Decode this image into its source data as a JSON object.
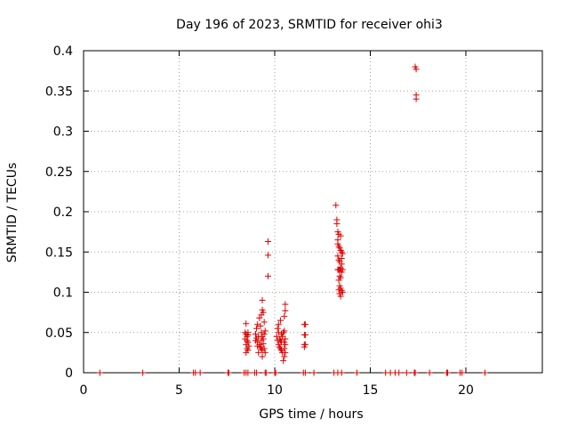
{
  "chart_data": {
    "type": "scatter",
    "title": "Day 196 of 2023, SRMTID for receiver ohi3",
    "xlabel": "GPS time / hours",
    "ylabel": "SRMTID / TECUs",
    "xlim": [
      0,
      24
    ],
    "ylim": [
      0,
      0.4
    ],
    "grid": true,
    "marker": "+",
    "color": "#e00000",
    "x_ticks": [
      0,
      5,
      10,
      15,
      20
    ],
    "y_ticks": [
      0,
      0.05,
      0.1,
      0.15,
      0.2,
      0.25,
      0.3,
      0.35,
      0.4
    ],
    "x_tick_labels": [
      "0",
      "5",
      "10",
      "15",
      "20"
    ],
    "y_tick_labels": [
      "0",
      "0.05",
      "0.1",
      "0.15",
      "0.2",
      "0.25",
      "0.3",
      "0.35",
      "0.4"
    ],
    "series": [
      {
        "name": "SRMTID",
        "points": [
          [
            0.85,
            0
          ],
          [
            3.1,
            0
          ],
          [
            5.75,
            0
          ],
          [
            5.85,
            0
          ],
          [
            6.1,
            0
          ],
          [
            7.55,
            0
          ],
          [
            7.6,
            0
          ],
          [
            8.4,
            0
          ],
          [
            8.5,
            0
          ],
          [
            8.6,
            0
          ],
          [
            8.95,
            0
          ],
          [
            9.05,
            0
          ],
          [
            9.5,
            0
          ],
          [
            9.55,
            0
          ],
          [
            10.0,
            0
          ],
          [
            10.05,
            0
          ],
          [
            11.5,
            0
          ],
          [
            11.6,
            0
          ],
          [
            12.05,
            0
          ],
          [
            13.1,
            0
          ],
          [
            13.3,
            0
          ],
          [
            13.5,
            0
          ],
          [
            14.3,
            0
          ],
          [
            15.8,
            0
          ],
          [
            16.05,
            0
          ],
          [
            16.3,
            0
          ],
          [
            16.5,
            0
          ],
          [
            16.9,
            0
          ],
          [
            17.3,
            0
          ],
          [
            17.35,
            0
          ],
          [
            18.1,
            0
          ],
          [
            19.0,
            0
          ],
          [
            19.05,
            0
          ],
          [
            19.7,
            0
          ],
          [
            19.8,
            0
          ],
          [
            21.0,
            0
          ],
          [
            8.5,
            0.061
          ],
          [
            8.45,
            0.05
          ],
          [
            8.5,
            0.048
          ],
          [
            8.55,
            0.045
          ],
          [
            8.6,
            0.05
          ],
          [
            8.45,
            0.042
          ],
          [
            8.55,
            0.04
          ],
          [
            8.6,
            0.038
          ],
          [
            8.5,
            0.035
          ],
          [
            8.55,
            0.03
          ],
          [
            8.6,
            0.028
          ],
          [
            8.5,
            0.025
          ],
          [
            8.65,
            0.033
          ],
          [
            8.6,
            0.047
          ],
          [
            9.0,
            0.048
          ],
          [
            9.05,
            0.055
          ],
          [
            9.1,
            0.06
          ],
          [
            9.15,
            0.045
          ],
          [
            9.0,
            0.04
          ],
          [
            9.1,
            0.038
          ],
          [
            9.2,
            0.035
          ],
          [
            9.25,
            0.032
          ],
          [
            9.3,
            0.03
          ],
          [
            9.35,
            0.028
          ],
          [
            9.15,
            0.025
          ],
          [
            9.2,
            0.068
          ],
          [
            9.25,
            0.058
          ],
          [
            9.3,
            0.05
          ],
          [
            9.35,
            0.045
          ],
          [
            9.4,
            0.042
          ],
          [
            9.3,
            0.04
          ],
          [
            9.4,
            0.036
          ],
          [
            9.45,
            0.03
          ],
          [
            9.5,
            0.025
          ],
          [
            9.35,
            0.02
          ],
          [
            9.3,
            0.072
          ],
          [
            9.35,
            0.078
          ],
          [
            9.4,
            0.075
          ],
          [
            9.45,
            0.063
          ],
          [
            9.5,
            0.052
          ],
          [
            9.45,
            0.048
          ],
          [
            9.1,
            0.033
          ],
          [
            9.05,
            0.043
          ],
          [
            9.35,
            0.09
          ],
          [
            9.65,
            0.163
          ],
          [
            9.65,
            0.146
          ],
          [
            9.65,
            0.12
          ],
          [
            10.1,
            0.045
          ],
          [
            10.15,
            0.055
          ],
          [
            10.2,
            0.05
          ],
          [
            10.25,
            0.042
          ],
          [
            10.3,
            0.04
          ],
          [
            10.35,
            0.038
          ],
          [
            10.2,
            0.035
          ],
          [
            10.25,
            0.032
          ],
          [
            10.3,
            0.03
          ],
          [
            10.35,
            0.028
          ],
          [
            10.4,
            0.025
          ],
          [
            10.2,
            0.06
          ],
          [
            10.3,
            0.065
          ],
          [
            10.35,
            0.048
          ],
          [
            10.4,
            0.045
          ],
          [
            10.45,
            0.05
          ],
          [
            10.5,
            0.052
          ],
          [
            10.55,
            0.042
          ],
          [
            10.5,
            0.038
          ],
          [
            10.55,
            0.035
          ],
          [
            10.5,
            0.03
          ],
          [
            10.55,
            0.025
          ],
          [
            10.5,
            0.02
          ],
          [
            10.45,
            0.015
          ],
          [
            10.5,
            0.07
          ],
          [
            10.55,
            0.077
          ],
          [
            10.55,
            0.085
          ],
          [
            10.15,
            0.04
          ],
          [
            11.55,
            0.06
          ],
          [
            11.6,
            0.06
          ],
          [
            11.55,
            0.047
          ],
          [
            11.6,
            0.047
          ],
          [
            11.55,
            0.035
          ],
          [
            11.6,
            0.035
          ],
          [
            11.55,
            0.032
          ],
          [
            13.2,
            0.208
          ],
          [
            13.25,
            0.19
          ],
          [
            13.25,
            0.185
          ],
          [
            13.3,
            0.175
          ],
          [
            13.35,
            0.172
          ],
          [
            13.45,
            0.17
          ],
          [
            13.3,
            0.16
          ],
          [
            13.35,
            0.157
          ],
          [
            13.4,
            0.155
          ],
          [
            13.45,
            0.152
          ],
          [
            13.5,
            0.15
          ],
          [
            13.55,
            0.148
          ],
          [
            13.3,
            0.145
          ],
          [
            13.35,
            0.14
          ],
          [
            13.4,
            0.138
          ],
          [
            13.5,
            0.135
          ],
          [
            13.45,
            0.13
          ],
          [
            13.3,
            0.128
          ],
          [
            13.35,
            0.128
          ],
          [
            13.4,
            0.128
          ],
          [
            13.45,
            0.128
          ],
          [
            13.5,
            0.125
          ],
          [
            13.55,
            0.128
          ],
          [
            13.4,
            0.12
          ],
          [
            13.45,
            0.118
          ],
          [
            13.4,
            0.108
          ],
          [
            13.45,
            0.105
          ],
          [
            13.5,
            0.102
          ],
          [
            13.55,
            0.1
          ],
          [
            13.4,
            0.098
          ],
          [
            13.45,
            0.095
          ],
          [
            13.35,
            0.103
          ],
          [
            13.3,
            0.165
          ],
          [
            13.5,
            0.142
          ],
          [
            13.35,
            0.115
          ],
          [
            17.35,
            0.38
          ],
          [
            17.4,
            0.377
          ],
          [
            17.4,
            0.345
          ],
          [
            17.4,
            0.34
          ]
        ]
      }
    ]
  }
}
